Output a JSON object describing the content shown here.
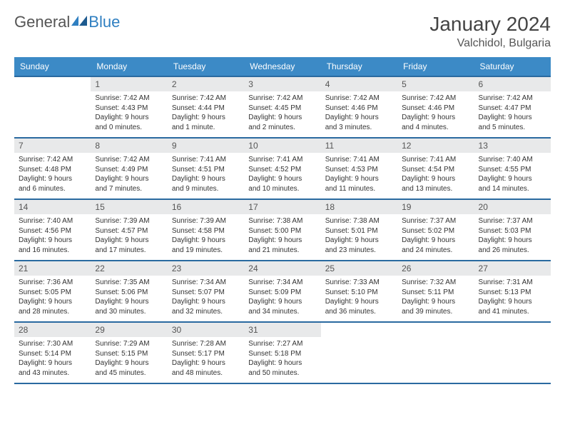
{
  "brand": {
    "part1": "General",
    "part2": "Blue"
  },
  "header": {
    "title": "January 2024",
    "location": "Valchidol, Bulgaria"
  },
  "colors": {
    "header_bg": "#3c8ac6",
    "header_text": "#ffffff",
    "row_border": "#2a6aa0",
    "daynum_bg": "#e8e9ea",
    "brand_accent": "#2f7fc1"
  },
  "weekdays": [
    "Sunday",
    "Monday",
    "Tuesday",
    "Wednesday",
    "Thursday",
    "Friday",
    "Saturday"
  ],
  "weeks": [
    [
      null,
      {
        "n": "1",
        "sunrise": "Sunrise: 7:42 AM",
        "sunset": "Sunset: 4:43 PM",
        "day1": "Daylight: 9 hours",
        "day2": "and 0 minutes."
      },
      {
        "n": "2",
        "sunrise": "Sunrise: 7:42 AM",
        "sunset": "Sunset: 4:44 PM",
        "day1": "Daylight: 9 hours",
        "day2": "and 1 minute."
      },
      {
        "n": "3",
        "sunrise": "Sunrise: 7:42 AM",
        "sunset": "Sunset: 4:45 PM",
        "day1": "Daylight: 9 hours",
        "day2": "and 2 minutes."
      },
      {
        "n": "4",
        "sunrise": "Sunrise: 7:42 AM",
        "sunset": "Sunset: 4:46 PM",
        "day1": "Daylight: 9 hours",
        "day2": "and 3 minutes."
      },
      {
        "n": "5",
        "sunrise": "Sunrise: 7:42 AM",
        "sunset": "Sunset: 4:46 PM",
        "day1": "Daylight: 9 hours",
        "day2": "and 4 minutes."
      },
      {
        "n": "6",
        "sunrise": "Sunrise: 7:42 AM",
        "sunset": "Sunset: 4:47 PM",
        "day1": "Daylight: 9 hours",
        "day2": "and 5 minutes."
      }
    ],
    [
      {
        "n": "7",
        "sunrise": "Sunrise: 7:42 AM",
        "sunset": "Sunset: 4:48 PM",
        "day1": "Daylight: 9 hours",
        "day2": "and 6 minutes."
      },
      {
        "n": "8",
        "sunrise": "Sunrise: 7:42 AM",
        "sunset": "Sunset: 4:49 PM",
        "day1": "Daylight: 9 hours",
        "day2": "and 7 minutes."
      },
      {
        "n": "9",
        "sunrise": "Sunrise: 7:41 AM",
        "sunset": "Sunset: 4:51 PM",
        "day1": "Daylight: 9 hours",
        "day2": "and 9 minutes."
      },
      {
        "n": "10",
        "sunrise": "Sunrise: 7:41 AM",
        "sunset": "Sunset: 4:52 PM",
        "day1": "Daylight: 9 hours",
        "day2": "and 10 minutes."
      },
      {
        "n": "11",
        "sunrise": "Sunrise: 7:41 AM",
        "sunset": "Sunset: 4:53 PM",
        "day1": "Daylight: 9 hours",
        "day2": "and 11 minutes."
      },
      {
        "n": "12",
        "sunrise": "Sunrise: 7:41 AM",
        "sunset": "Sunset: 4:54 PM",
        "day1": "Daylight: 9 hours",
        "day2": "and 13 minutes."
      },
      {
        "n": "13",
        "sunrise": "Sunrise: 7:40 AM",
        "sunset": "Sunset: 4:55 PM",
        "day1": "Daylight: 9 hours",
        "day2": "and 14 minutes."
      }
    ],
    [
      {
        "n": "14",
        "sunrise": "Sunrise: 7:40 AM",
        "sunset": "Sunset: 4:56 PM",
        "day1": "Daylight: 9 hours",
        "day2": "and 16 minutes."
      },
      {
        "n": "15",
        "sunrise": "Sunrise: 7:39 AM",
        "sunset": "Sunset: 4:57 PM",
        "day1": "Daylight: 9 hours",
        "day2": "and 17 minutes."
      },
      {
        "n": "16",
        "sunrise": "Sunrise: 7:39 AM",
        "sunset": "Sunset: 4:58 PM",
        "day1": "Daylight: 9 hours",
        "day2": "and 19 minutes."
      },
      {
        "n": "17",
        "sunrise": "Sunrise: 7:38 AM",
        "sunset": "Sunset: 5:00 PM",
        "day1": "Daylight: 9 hours",
        "day2": "and 21 minutes."
      },
      {
        "n": "18",
        "sunrise": "Sunrise: 7:38 AM",
        "sunset": "Sunset: 5:01 PM",
        "day1": "Daylight: 9 hours",
        "day2": "and 23 minutes."
      },
      {
        "n": "19",
        "sunrise": "Sunrise: 7:37 AM",
        "sunset": "Sunset: 5:02 PM",
        "day1": "Daylight: 9 hours",
        "day2": "and 24 minutes."
      },
      {
        "n": "20",
        "sunrise": "Sunrise: 7:37 AM",
        "sunset": "Sunset: 5:03 PM",
        "day1": "Daylight: 9 hours",
        "day2": "and 26 minutes."
      }
    ],
    [
      {
        "n": "21",
        "sunrise": "Sunrise: 7:36 AM",
        "sunset": "Sunset: 5:05 PM",
        "day1": "Daylight: 9 hours",
        "day2": "and 28 minutes."
      },
      {
        "n": "22",
        "sunrise": "Sunrise: 7:35 AM",
        "sunset": "Sunset: 5:06 PM",
        "day1": "Daylight: 9 hours",
        "day2": "and 30 minutes."
      },
      {
        "n": "23",
        "sunrise": "Sunrise: 7:34 AM",
        "sunset": "Sunset: 5:07 PM",
        "day1": "Daylight: 9 hours",
        "day2": "and 32 minutes."
      },
      {
        "n": "24",
        "sunrise": "Sunrise: 7:34 AM",
        "sunset": "Sunset: 5:09 PM",
        "day1": "Daylight: 9 hours",
        "day2": "and 34 minutes."
      },
      {
        "n": "25",
        "sunrise": "Sunrise: 7:33 AM",
        "sunset": "Sunset: 5:10 PM",
        "day1": "Daylight: 9 hours",
        "day2": "and 36 minutes."
      },
      {
        "n": "26",
        "sunrise": "Sunrise: 7:32 AM",
        "sunset": "Sunset: 5:11 PM",
        "day1": "Daylight: 9 hours",
        "day2": "and 39 minutes."
      },
      {
        "n": "27",
        "sunrise": "Sunrise: 7:31 AM",
        "sunset": "Sunset: 5:13 PM",
        "day1": "Daylight: 9 hours",
        "day2": "and 41 minutes."
      }
    ],
    [
      {
        "n": "28",
        "sunrise": "Sunrise: 7:30 AM",
        "sunset": "Sunset: 5:14 PM",
        "day1": "Daylight: 9 hours",
        "day2": "and 43 minutes."
      },
      {
        "n": "29",
        "sunrise": "Sunrise: 7:29 AM",
        "sunset": "Sunset: 5:15 PM",
        "day1": "Daylight: 9 hours",
        "day2": "and 45 minutes."
      },
      {
        "n": "30",
        "sunrise": "Sunrise: 7:28 AM",
        "sunset": "Sunset: 5:17 PM",
        "day1": "Daylight: 9 hours",
        "day2": "and 48 minutes."
      },
      {
        "n": "31",
        "sunrise": "Sunrise: 7:27 AM",
        "sunset": "Sunset: 5:18 PM",
        "day1": "Daylight: 9 hours",
        "day2": "and 50 minutes."
      },
      null,
      null,
      null
    ]
  ]
}
